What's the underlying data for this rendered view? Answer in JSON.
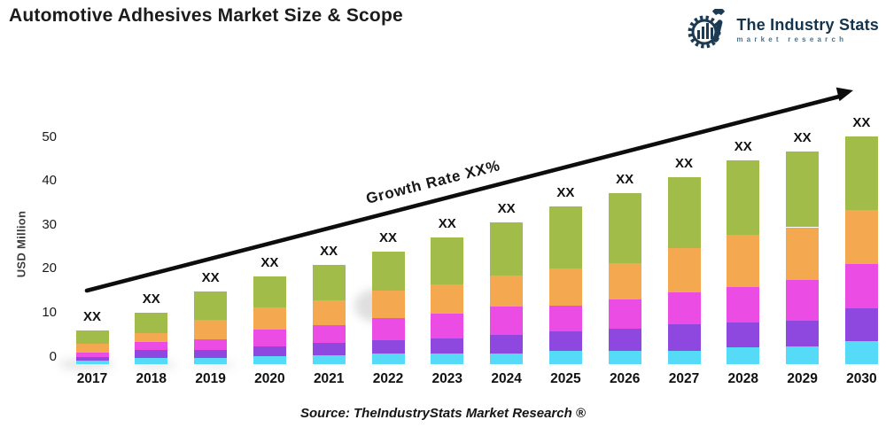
{
  "header": {
    "title": "Automotive Adhesives Market Size & Scope",
    "logo": {
      "name": "The Industry Stats",
      "tagline": "market research",
      "brand_color": "#14334d"
    }
  },
  "chart_data": {
    "type": "bar",
    "stacked": true,
    "title": "Automotive Adhesives Market Size & Scope",
    "ylabel": "USD Million",
    "xlabel": "",
    "yticks": [
      0,
      10,
      20,
      30,
      40,
      50
    ],
    "ylim": [
      0,
      50
    ],
    "grid": false,
    "legend": "none",
    "bar_top_label": "XX",
    "annotation": {
      "growth_label": "Growth Rate XX%",
      "arrow": "diagonal-up-right"
    },
    "categories": [
      "2017",
      "2018",
      "2019",
      "2020",
      "2021",
      "2022",
      "2023",
      "2024",
      "2025",
      "2026",
      "2027",
      "2028",
      "2029",
      "2030"
    ],
    "series": [
      {
        "name": "segment-1-cyan",
        "color": "#55dbf7",
        "values": [
          0.7,
          1.4,
          1.4,
          1.7,
          1.9,
          2.4,
          2.4,
          2.3,
          2.9,
          3.0,
          3.0,
          3.6,
          3.9,
          5.0
        ]
      },
      {
        "name": "segment-2-purple",
        "color": "#8e48e0",
        "values": [
          0.8,
          1.8,
          1.8,
          2.2,
          2.7,
          2.8,
          3.2,
          4.2,
          4.2,
          4.7,
          5.7,
          5.5,
          5.7,
          7.2
        ]
      },
      {
        "name": "segment-3-magenta",
        "color": "#eb4ce4",
        "values": [
          1.0,
          1.6,
          2.3,
          3.6,
          3.9,
          4.9,
          5.4,
          6.1,
          5.8,
          6.5,
          7.0,
          7.8,
          8.9,
          9.7
        ]
      },
      {
        "name": "segment-4-orange",
        "color": "#f4a950",
        "values": [
          1.9,
          1.9,
          4.2,
          5.0,
          5.5,
          6.0,
          6.5,
          6.8,
          8.1,
          8.0,
          9.7,
          11.5,
          11.5,
          11.8
        ]
      },
      {
        "name": "segment-5-green",
        "color": "#a2bc49",
        "values": [
          2.9,
          4.5,
          6.2,
          6.7,
          7.8,
          8.5,
          10.2,
          11.6,
          13.5,
          15.2,
          15.5,
          16.2,
          16.6,
          16.2
        ]
      }
    ],
    "totals_estimated": [
      7.3,
      11.2,
      15.9,
      19.2,
      21.8,
      24.6,
      27.7,
      31.0,
      34.5,
      37.4,
      40.9,
      44.6,
      46.6,
      49.9
    ]
  },
  "footer": {
    "source": "Source: TheIndustryStats Market Research ®"
  }
}
